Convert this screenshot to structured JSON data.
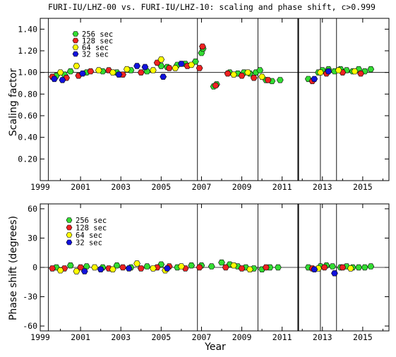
{
  "chart_data": [
    {
      "type": "scatter",
      "title": "FURI-IU/LHZ-00 vs. FURI-IU/LHZ-10: scaling and phase shift, c>0.999",
      "ylabel": "Scaling factor",
      "xlabel": "",
      "xlim": [
        1999,
        2016.3
      ],
      "ylim": [
        0,
        1.5
      ],
      "xticks": [
        "1999",
        "2001",
        "2003",
        "2005",
        "2007",
        "2009",
        "2011",
        "2013",
        "2015"
      ],
      "yticks": [
        "0.20",
        "0.40",
        "0.60",
        "0.80",
        "1.00",
        "1.20",
        "1.40"
      ],
      "reference_line": 1.0,
      "vlines": [
        1999.4,
        2006.8,
        2009.8,
        2011.8,
        2012.9,
        2013.7
      ],
      "thick_vlines": [
        2011.8
      ],
      "legend": [
        "256 sec",
        "128 sec",
        "64 sec",
        "32 sec"
      ],
      "colors": [
        "#33dd33",
        "#ee2222",
        "#ffff00",
        "#1111dd"
      ],
      "series": [
        {
          "name": "256 sec",
          "color": "#33dd33",
          "x": [
            1999.8,
            2000.2,
            2000.5,
            2001.3,
            2002.1,
            2002.8,
            2003.5,
            2004.3,
            2005.0,
            2005.3,
            2005.8,
            2006.2,
            2006.7,
            2007.0,
            2007.08,
            2007.6,
            2007.75,
            2008.4,
            2008.8,
            2009.1,
            2009.4,
            2009.7,
            2009.9,
            2010.2,
            2010.5,
            2010.9,
            2012.3,
            2012.8,
            2013.0,
            2013.3,
            2013.6,
            2013.9,
            2014.2,
            2014.5,
            2014.8,
            2015.1,
            2015.4
          ],
          "y": [
            0.97,
            0.98,
            1.01,
            1.0,
            1.01,
            1.0,
            1.02,
            1.01,
            1.06,
            1.05,
            1.07,
            1.08,
            1.1,
            1.18,
            1.22,
            0.87,
            0.89,
            1.0,
            0.99,
            1.0,
            0.99,
            1.0,
            1.02,
            0.93,
            0.92,
            0.93,
            0.94,
            1.0,
            1.02,
            1.03,
            1.01,
            1.03,
            1.02,
            1.01,
            1.03,
            1.01,
            1.03
          ]
        },
        {
          "name": "128 sec",
          "color": "#ee2222",
          "x": [
            1999.6,
            2000.3,
            2000.9,
            2001.5,
            2002.4,
            2003.1,
            2004.0,
            2004.8,
            2005.4,
            2006.3,
            2006.9,
            2007.05,
            2007.7,
            2008.3,
            2009.0,
            2009.6,
            2010.3,
            2012.5,
            2013.2,
            2014.0,
            2014.9
          ],
          "y": [
            0.96,
            0.95,
            0.97,
            1.01,
            1.02,
            0.98,
            1.0,
            1.09,
            1.04,
            1.06,
            1.04,
            1.24,
            0.88,
            0.99,
            0.97,
            0.95,
            0.93,
            0.92,
            0.99,
            1.0,
            0.99
          ]
        },
        {
          "name": "64 sec",
          "color": "#ffff00",
          "x": [
            2000.0,
            2000.8,
            2001.9,
            2002.6,
            2003.3,
            2004.6,
            2005.0,
            2005.7,
            2006.5,
            2008.6,
            2009.3,
            2010.0,
            2012.9,
            2013.8,
            2014.6
          ],
          "y": [
            1.0,
            1.06,
            1.02,
            1.0,
            1.03,
            1.02,
            1.12,
            1.04,
            1.07,
            0.98,
            1.0,
            0.96,
            1.0,
            1.02,
            1.01
          ]
        },
        {
          "name": "32 sec",
          "color": "#1111dd",
          "x": [
            1999.7,
            2000.1,
            2001.1,
            2002.9,
            2003.8,
            2004.2,
            2005.1,
            2006.0,
            2012.6,
            2013.3
          ],
          "y": [
            0.94,
            0.93,
            0.99,
            0.98,
            1.06,
            1.05,
            0.96,
            1.08,
            0.94,
            1.01
          ]
        }
      ]
    },
    {
      "type": "scatter",
      "title": "",
      "ylabel": "Phase shift (degrees)",
      "xlabel": "Year",
      "xlim": [
        1999,
        2016.3
      ],
      "ylim": [
        -65,
        65
      ],
      "xticks": [
        "1999",
        "2001",
        "2003",
        "2005",
        "2007",
        "2009",
        "2011",
        "2013",
        "2015"
      ],
      "yticks": [
        "-60",
        "-30",
        "0",
        "30",
        "60"
      ],
      "reference_line": 0,
      "vlines": [
        1999.4,
        2006.8,
        2009.8,
        2011.8,
        2012.9,
        2013.7
      ],
      "thick_vlines": [
        2011.8
      ],
      "legend": [
        "256 sec",
        "128 sec",
        "64 sec",
        "32 sec"
      ],
      "colors": [
        "#33dd33",
        "#ee2222",
        "#ffff00",
        "#1111dd"
      ],
      "series": [
        {
          "name": "256 sec",
          "color": "#33dd33",
          "x": [
            1999.8,
            2000.5,
            2001.3,
            2002.1,
            2002.8,
            2003.5,
            2004.3,
            2005.0,
            2005.8,
            2006.5,
            2007.0,
            2007.5,
            2008.0,
            2008.4,
            2008.8,
            2009.2,
            2009.6,
            2010.0,
            2010.4,
            2010.8,
            2012.3,
            2012.9,
            2013.2,
            2013.5,
            2013.9,
            2014.2,
            2014.5,
            2014.8,
            2015.1,
            2015.4
          ],
          "y": [
            0,
            2,
            1,
            0,
            2,
            0,
            1,
            3,
            0,
            2,
            2,
            1,
            5,
            3,
            1,
            0,
            -1,
            -2,
            0,
            0,
            0,
            1,
            2,
            1,
            0,
            1,
            0,
            0,
            0,
            1
          ]
        },
        {
          "name": "128 sec",
          "color": "#ee2222",
          "x": [
            1999.6,
            2000.2,
            2001.0,
            2002.4,
            2003.1,
            2004.0,
            2004.8,
            2005.4,
            2006.2,
            2006.9,
            2008.2,
            2009.0,
            2010.2,
            2012.5,
            2013.1,
            2014.0
          ],
          "y": [
            -1,
            -1,
            0,
            -1,
            0,
            -1,
            0,
            1,
            -1,
            0,
            0,
            -1,
            0,
            -1,
            0,
            0
          ]
        },
        {
          "name": "64 sec",
          "color": "#ffff00",
          "x": [
            2000.0,
            2000.8,
            2001.7,
            2002.6,
            2003.8,
            2004.6,
            2005.2,
            2006.0,
            2008.6,
            2009.4,
            2012.8,
            2014.4
          ],
          "y": [
            -3,
            -4,
            0,
            -2,
            4,
            -1,
            -3,
            1,
            2,
            -2,
            -1,
            -1
          ]
        },
        {
          "name": "32 sec",
          "color": "#1111dd",
          "x": [
            2001.2,
            2002.0,
            2003.4,
            2005.3,
            2012.6,
            2013.6
          ],
          "y": [
            -4,
            -2,
            -1,
            -1,
            -2,
            -6
          ]
        }
      ]
    }
  ]
}
